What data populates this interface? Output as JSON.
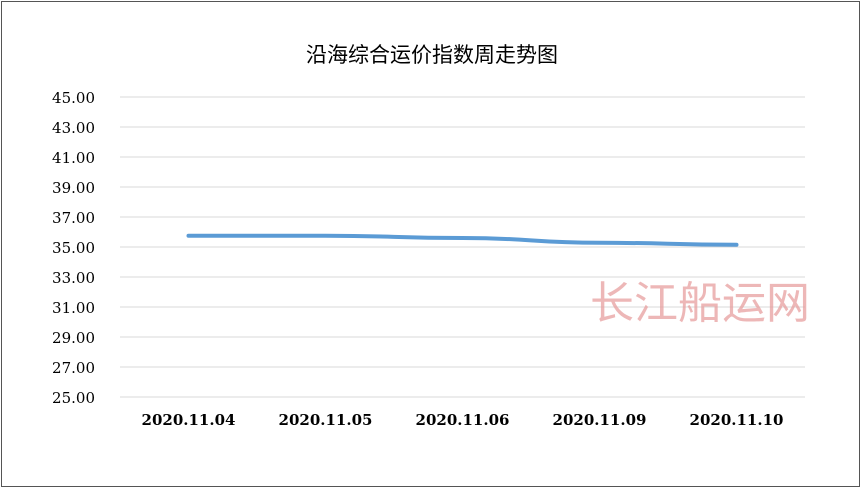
{
  "chart_data": {
    "type": "line",
    "title": "沿海综合运价指数周走势图",
    "categories": [
      "2020.11.04",
      "2020.11.05",
      "2020.11.06",
      "2020.11.09",
      "2020.11.10"
    ],
    "series": [
      {
        "values": [
          35.75,
          35.75,
          35.6,
          35.28,
          35.15
        ],
        "color": "#5B9BD5"
      }
    ],
    "ylim": [
      25,
      45
    ],
    "yticks": [
      "25.00",
      "27.00",
      "29.00",
      "31.00",
      "33.00",
      "35.00",
      "37.00",
      "39.00",
      "41.00",
      "43.00",
      "45.00"
    ],
    "grid": true,
    "legend": "none"
  },
  "watermark": "长江船运网"
}
